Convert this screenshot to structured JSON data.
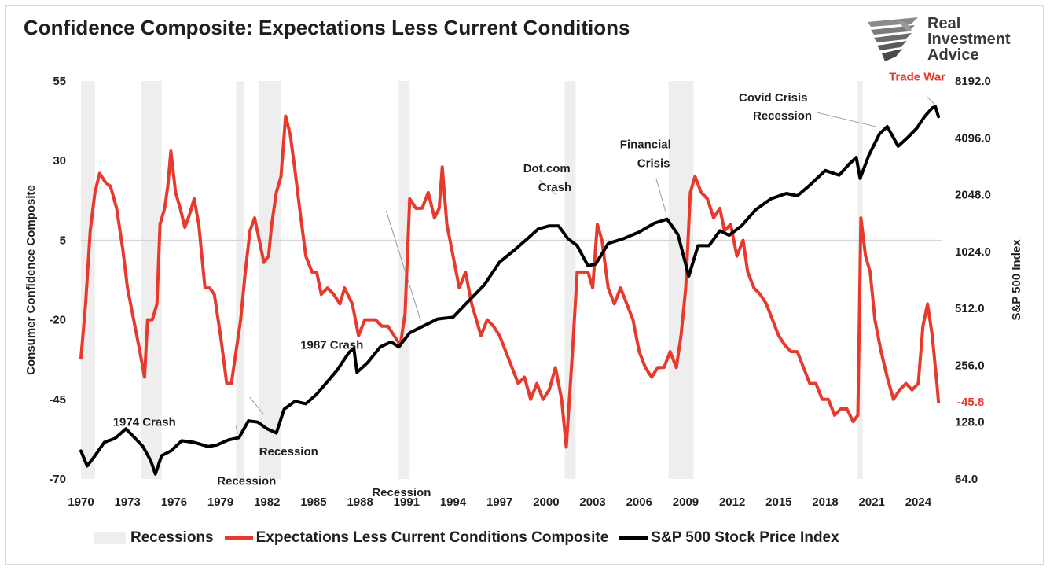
{
  "chart_data": {
    "type": "line",
    "title": "Confidence Composite: Expectations Less Current Conditions",
    "y_left": {
      "label": "Consumer Confidence Composite",
      "range": [
        -70,
        55
      ],
      "ticks": [
        "55",
        "30",
        "5",
        "-20",
        "-45",
        "-70"
      ]
    },
    "y_right": {
      "label": "S&P 500 Index",
      "scale": "log2",
      "range": [
        64,
        8192
      ],
      "ticks": [
        "8192.0",
        "4096.0",
        "2048.0",
        "1024.0",
        "512.0",
        "256.0",
        "128.0",
        "64.0"
      ]
    },
    "x_axis": {
      "range": [
        1970,
        2025.5
      ],
      "ticks": [
        "1970",
        "1973",
        "1976",
        "1979",
        "1982",
        "1985",
        "1988",
        "1991",
        "1994",
        "1997",
        "2000",
        "2003",
        "2006",
        "2009",
        "2012",
        "2015",
        "2018",
        "2021",
        "2024"
      ]
    },
    "recessions": [
      [
        1970.0,
        1970.9
      ],
      [
        1973.9,
        1975.2
      ],
      [
        1980.0,
        1980.5
      ],
      [
        1981.5,
        1982.9
      ],
      [
        1990.5,
        1991.2
      ],
      [
        2001.2,
        2001.9
      ],
      [
        2007.9,
        2009.5
      ],
      [
        2020.1,
        2020.4
      ]
    ],
    "series": [
      {
        "name": "Expectations Less Current Conditions Composite",
        "color": "#e8392c",
        "axis": "left",
        "points": [
          [
            1970.0,
            -32
          ],
          [
            1970.3,
            -15
          ],
          [
            1970.6,
            8
          ],
          [
            1970.9,
            20
          ],
          [
            1971.2,
            26
          ],
          [
            1971.6,
            23
          ],
          [
            1971.9,
            22
          ],
          [
            1972.3,
            15
          ],
          [
            1972.7,
            2
          ],
          [
            1973.0,
            -10
          ],
          [
            1973.4,
            -20
          ],
          [
            1973.8,
            -30
          ],
          [
            1974.1,
            -38
          ],
          [
            1974.3,
            -20
          ],
          [
            1974.6,
            -20
          ],
          [
            1974.9,
            -15
          ],
          [
            1975.1,
            10
          ],
          [
            1975.4,
            15
          ],
          [
            1975.6,
            22
          ],
          [
            1975.8,
            33
          ],
          [
            1976.1,
            20
          ],
          [
            1976.4,
            15
          ],
          [
            1976.7,
            9
          ],
          [
            1977.0,
            13
          ],
          [
            1977.3,
            18
          ],
          [
            1977.6,
            10
          ],
          [
            1978.0,
            -10
          ],
          [
            1978.3,
            -10
          ],
          [
            1978.6,
            -12
          ],
          [
            1979.0,
            -25
          ],
          [
            1979.4,
            -40
          ],
          [
            1979.7,
            -40
          ],
          [
            1980.0,
            -30
          ],
          [
            1980.3,
            -20
          ],
          [
            1980.6,
            -5
          ],
          [
            1980.9,
            8
          ],
          [
            1981.2,
            12
          ],
          [
            1981.5,
            5
          ],
          [
            1981.8,
            -2
          ],
          [
            1982.1,
            0
          ],
          [
            1982.3,
            10
          ],
          [
            1982.6,
            20
          ],
          [
            1982.9,
            25
          ],
          [
            1983.2,
            44
          ],
          [
            1983.5,
            38
          ],
          [
            1983.8,
            27
          ],
          [
            1984.1,
            15
          ],
          [
            1984.5,
            0
          ],
          [
            1984.9,
            -5
          ],
          [
            1985.2,
            -5
          ],
          [
            1985.5,
            -12
          ],
          [
            1985.9,
            -10
          ],
          [
            1986.3,
            -12
          ],
          [
            1986.7,
            -15
          ],
          [
            1987.0,
            -10
          ],
          [
            1987.5,
            -15
          ],
          [
            1987.9,
            -25
          ],
          [
            1988.3,
            -20
          ],
          [
            1988.7,
            -20
          ],
          [
            1989.0,
            -20
          ],
          [
            1989.4,
            -22
          ],
          [
            1989.8,
            -22
          ],
          [
            1990.2,
            -25
          ],
          [
            1990.6,
            -28
          ],
          [
            1990.9,
            -18
          ],
          [
            1991.2,
            18
          ],
          [
            1991.6,
            15
          ],
          [
            1992.0,
            15
          ],
          [
            1992.4,
            20
          ],
          [
            1992.8,
            12
          ],
          [
            1993.1,
            15
          ],
          [
            1993.3,
            28
          ],
          [
            1993.6,
            10
          ],
          [
            1994.0,
            0
          ],
          [
            1994.4,
            -10
          ],
          [
            1994.8,
            -5
          ],
          [
            1995.2,
            -15
          ],
          [
            1995.5,
            -20
          ],
          [
            1995.8,
            -25
          ],
          [
            1996.2,
            -20
          ],
          [
            1996.6,
            -22
          ],
          [
            1997.0,
            -25
          ],
          [
            1997.4,
            -30
          ],
          [
            1997.8,
            -35
          ],
          [
            1998.2,
            -40
          ],
          [
            1998.6,
            -38
          ],
          [
            1999.0,
            -45
          ],
          [
            1999.4,
            -40
          ],
          [
            1999.8,
            -45
          ],
          [
            2000.2,
            -42
          ],
          [
            2000.6,
            -35
          ],
          [
            2001.0,
            -45
          ],
          [
            2001.3,
            -60
          ],
          [
            2001.7,
            -30
          ],
          [
            2002.0,
            -5
          ],
          [
            2002.3,
            -5
          ],
          [
            2002.7,
            -5
          ],
          [
            2003.0,
            -10
          ],
          [
            2003.3,
            10
          ],
          [
            2003.6,
            5
          ],
          [
            2004.0,
            -10
          ],
          [
            2004.4,
            -15
          ],
          [
            2004.8,
            -10
          ],
          [
            2005.2,
            -15
          ],
          [
            2005.6,
            -20
          ],
          [
            2006.0,
            -30
          ],
          [
            2006.4,
            -35
          ],
          [
            2006.8,
            -38
          ],
          [
            2007.2,
            -35
          ],
          [
            2007.6,
            -35
          ],
          [
            2008.0,
            -30
          ],
          [
            2008.4,
            -35
          ],
          [
            2008.7,
            -25
          ],
          [
            2009.0,
            -10
          ],
          [
            2009.3,
            20
          ],
          [
            2009.6,
            25
          ],
          [
            2010.0,
            20
          ],
          [
            2010.4,
            18
          ],
          [
            2010.8,
            12
          ],
          [
            2011.2,
            15
          ],
          [
            2011.5,
            8
          ],
          [
            2011.9,
            10
          ],
          [
            2012.3,
            0
          ],
          [
            2012.7,
            5
          ],
          [
            2013.0,
            -5
          ],
          [
            2013.4,
            -10
          ],
          [
            2013.8,
            -12
          ],
          [
            2014.2,
            -15
          ],
          [
            2014.6,
            -20
          ],
          [
            2015.0,
            -25
          ],
          [
            2015.4,
            -28
          ],
          [
            2015.8,
            -30
          ],
          [
            2016.2,
            -30
          ],
          [
            2016.6,
            -35
          ],
          [
            2017.0,
            -40
          ],
          [
            2017.4,
            -40
          ],
          [
            2017.8,
            -45
          ],
          [
            2018.2,
            -45
          ],
          [
            2018.6,
            -50
          ],
          [
            2019.0,
            -48
          ],
          [
            2019.4,
            -48
          ],
          [
            2019.8,
            -52
          ],
          [
            2020.1,
            -50
          ],
          [
            2020.3,
            12
          ],
          [
            2020.6,
            0
          ],
          [
            2020.9,
            -5
          ],
          [
            2021.2,
            -20
          ],
          [
            2021.6,
            -30
          ],
          [
            2022.0,
            -38
          ],
          [
            2022.4,
            -45
          ],
          [
            2022.8,
            -42
          ],
          [
            2023.2,
            -40
          ],
          [
            2023.6,
            -42
          ],
          [
            2024.0,
            -40
          ],
          [
            2024.3,
            -22
          ],
          [
            2024.6,
            -15
          ],
          [
            2024.9,
            -25
          ],
          [
            2025.2,
            -40
          ],
          [
            2025.3,
            -45.8
          ]
        ]
      },
      {
        "name": "S&P 500 Stock Price Index",
        "color": "#000000",
        "axis": "right",
        "points": [
          [
            1970.0,
            90
          ],
          [
            1970.4,
            75
          ],
          [
            1970.9,
            85
          ],
          [
            1971.5,
            100
          ],
          [
            1972.2,
            105
          ],
          [
            1972.9,
            118
          ],
          [
            1973.5,
            105
          ],
          [
            1974.0,
            95
          ],
          [
            1974.5,
            80
          ],
          [
            1974.8,
            68
          ],
          [
            1975.2,
            85
          ],
          [
            1975.8,
            90
          ],
          [
            1976.5,
            102
          ],
          [
            1977.3,
            100
          ],
          [
            1978.2,
            95
          ],
          [
            1978.8,
            97
          ],
          [
            1979.5,
            103
          ],
          [
            1980.2,
            106
          ],
          [
            1980.8,
            130
          ],
          [
            1981.4,
            128
          ],
          [
            1982.0,
            118
          ],
          [
            1982.6,
            112
          ],
          [
            1983.1,
            150
          ],
          [
            1983.8,
            165
          ],
          [
            1984.5,
            160
          ],
          [
            1985.2,
            180
          ],
          [
            1985.9,
            210
          ],
          [
            1986.5,
            240
          ],
          [
            1987.3,
            300
          ],
          [
            1987.6,
            315
          ],
          [
            1987.8,
            235
          ],
          [
            1988.5,
            265
          ],
          [
            1989.3,
            320
          ],
          [
            1990.0,
            340
          ],
          [
            1990.5,
            320
          ],
          [
            1991.2,
            380
          ],
          [
            1992.0,
            410
          ],
          [
            1993.0,
            450
          ],
          [
            1994.0,
            460
          ],
          [
            1995.0,
            560
          ],
          [
            1996.0,
            680
          ],
          [
            1997.0,
            900
          ],
          [
            1998.0,
            1050
          ],
          [
            1998.7,
            1180
          ],
          [
            1999.5,
            1350
          ],
          [
            2000.2,
            1400
          ],
          [
            2000.8,
            1400
          ],
          [
            2001.4,
            1200
          ],
          [
            2002.0,
            1100
          ],
          [
            2002.7,
            860
          ],
          [
            2003.2,
            880
          ],
          [
            2004.0,
            1130
          ],
          [
            2005.0,
            1200
          ],
          [
            2006.0,
            1300
          ],
          [
            2007.0,
            1450
          ],
          [
            2007.8,
            1520
          ],
          [
            2008.5,
            1260
          ],
          [
            2009.2,
            760
          ],
          [
            2009.8,
            1100
          ],
          [
            2010.5,
            1100
          ],
          [
            2011.2,
            1320
          ],
          [
            2011.8,
            1250
          ],
          [
            2012.6,
            1400
          ],
          [
            2013.5,
            1700
          ],
          [
            2014.5,
            1950
          ],
          [
            2015.5,
            2080
          ],
          [
            2016.2,
            2020
          ],
          [
            2017.0,
            2300
          ],
          [
            2018.0,
            2750
          ],
          [
            2018.9,
            2600
          ],
          [
            2019.5,
            2950
          ],
          [
            2020.0,
            3230
          ],
          [
            2020.25,
            2500
          ],
          [
            2020.8,
            3300
          ],
          [
            2021.5,
            4300
          ],
          [
            2022.0,
            4700
          ],
          [
            2022.7,
            3700
          ],
          [
            2023.3,
            4100
          ],
          [
            2023.9,
            4600
          ],
          [
            2024.4,
            5300
          ],
          [
            2024.9,
            5900
          ],
          [
            2025.1,
            6000
          ],
          [
            2025.3,
            5300
          ]
        ]
      }
    ],
    "annotations": [
      {
        "text": "1974 Crash",
        "x": 1974.8,
        "y": 70
      },
      {
        "text": "1987 Crash",
        "x": 1987.8,
        "y": 235
      },
      {
        "text": "Recession",
        "x": 1980.2,
        "y": 103
      },
      {
        "text": "Recession",
        "x": 1982.0,
        "y": 118
      },
      {
        "text": "Recession",
        "x": 1990.9,
        "y": 330
      },
      {
        "text": "Dot.com",
        "x": 2000.7,
        "y": 1400
      },
      {
        "text": "Crash",
        "x": 2000.7,
        "y": 1400
      },
      {
        "text": "Financial",
        "x": 2007.8,
        "y": 1520
      },
      {
        "text": "Crisis",
        "x": 2007.8,
        "y": 1520
      },
      {
        "text": "Covid Crisis",
        "x": 2021.8,
        "y": 4600
      },
      {
        "text": "Recession",
        "x": 2021.8,
        "y": 4600
      },
      {
        "text": "Trade War",
        "x": 2025.1,
        "y": 6000
      },
      {
        "text": "-45.8",
        "x": 2025.3,
        "y": -45.8
      }
    ],
    "legend": {
      "placement": "bottom",
      "items": [
        {
          "label": "Recessions",
          "kind": "box",
          "color": "#eeeeee"
        },
        {
          "label": "Expectations Less Current Conditions Composite",
          "kind": "line",
          "color": "#e8392c"
        },
        {
          "label": "S&P 500 Stock Price Index",
          "kind": "line",
          "color": "#000000"
        }
      ]
    }
  },
  "logo": {
    "line1": "Real",
    "line2": "Investment",
    "line3": "Advice"
  }
}
